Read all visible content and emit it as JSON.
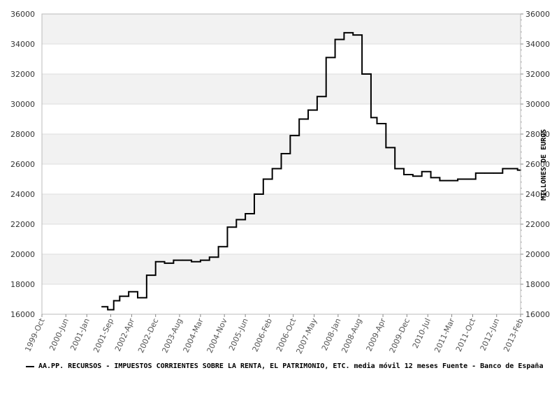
{
  "chart_data": {
    "type": "line",
    "title": "",
    "xlabel": "",
    "ylabel": "MILLONES DE EUROS",
    "ylim": [
      16000,
      36000
    ],
    "xlim": [
      "1999-10",
      "2013-02"
    ],
    "yticks": [
      16000,
      18000,
      20000,
      22000,
      24000,
      26000,
      28000,
      30000,
      32000,
      34000,
      36000
    ],
    "y_tick_labels": [
      "16000",
      "18000",
      "20000",
      "22000",
      "24000",
      "26000",
      "28000",
      "30000",
      "32000",
      "34000",
      "36000"
    ],
    "x_tick_labels": [
      "1999-Oct",
      "2000-Jun",
      "2001-Jan",
      "2001-Sep",
      "2002-Apr",
      "2002-Dec",
      "2003-Aug",
      "2004-Mar",
      "2004-Nov",
      "2005-Jun",
      "2006-Feb",
      "2006-Oct",
      "2007-May",
      "2008-Jan",
      "2008-Aug",
      "2009-Apr",
      "2009-Dec",
      "2010-Jul",
      "2011-Mar",
      "2011-Oct",
      "2012-Jun",
      "2013-Feb"
    ],
    "x_tick_dates": [
      "1999-10",
      "2000-06",
      "2001-01",
      "2001-09",
      "2002-04",
      "2002-12",
      "2003-08",
      "2004-03",
      "2004-11",
      "2005-06",
      "2006-02",
      "2006-10",
      "2007-05",
      "2008-01",
      "2008-08",
      "2009-04",
      "2009-12",
      "2010-07",
      "2011-03",
      "2011-10",
      "2012-06",
      "2013-02"
    ],
    "grid": true,
    "legend_position": "bottom",
    "series": [
      {
        "name": "AA.PP. RECURSOS - IMPUESTOS CORRIENTES SOBRE LA RENTA, EL PATRIMONIO, ETC. media móvil 12 meses  Fuente - Banco de España",
        "color": "#000000",
        "step": true,
        "x": [
          "2001-06",
          "2001-08",
          "2001-10",
          "2001-12",
          "2002-03",
          "2002-06",
          "2002-09",
          "2002-12",
          "2003-03",
          "2003-06",
          "2003-09",
          "2003-12",
          "2004-03",
          "2004-06",
          "2004-09",
          "2004-12",
          "2005-03",
          "2005-06",
          "2005-09",
          "2005-12",
          "2006-03",
          "2006-06",
          "2006-09",
          "2006-12",
          "2007-03",
          "2007-06",
          "2007-09",
          "2007-12",
          "2008-03",
          "2008-06",
          "2008-09",
          "2008-12",
          "2009-02",
          "2009-05",
          "2009-08",
          "2009-11",
          "2010-02",
          "2010-05",
          "2010-08",
          "2010-11",
          "2011-02",
          "2011-05",
          "2011-08",
          "2011-11",
          "2012-02",
          "2012-05",
          "2012-08",
          "2012-11",
          "2013-01"
        ],
        "values": [
          16500,
          16300,
          16900,
          17200,
          17500,
          17100,
          18600,
          19500,
          19400,
          19600,
          19600,
          19500,
          19600,
          19800,
          20500,
          21800,
          22300,
          22700,
          24000,
          25000,
          25700,
          26700,
          27900,
          29000,
          29600,
          30500,
          33100,
          34300,
          34750,
          34600,
          32000,
          29100,
          28700,
          27100,
          25700,
          25300,
          25200,
          25500,
          25100,
          24900,
          24900,
          25000,
          25000,
          25400,
          25400,
          25400,
          25700,
          25700,
          25600
        ]
      }
    ]
  },
  "axis": {
    "y_right_label": "MILLONES DE EUROS",
    "minor_tick_count": 4
  },
  "colors": {
    "band": "#f2f2f2",
    "grid": "#dddddd",
    "line": "#000000"
  }
}
